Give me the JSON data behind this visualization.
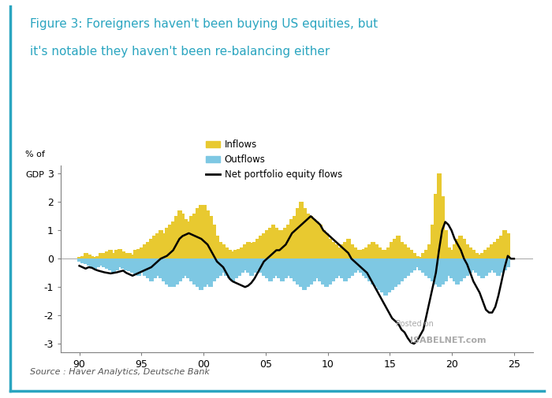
{
  "title_line1": "Figure 3: Foreigners haven't been buying US equities, but",
  "title_line2": "it's notable they haven't been re-balancing either",
  "ylabel_line1": "% of",
  "ylabel_line2": "GDP",
  "source": "Source : Haver Analytics, Deutsche Bank",
  "watermark_line1": "Posted on",
  "watermark_line2": "ISABELNET.com",
  "ylim": [
    -3.3,
    3.3
  ],
  "yticks": [
    -3,
    -2,
    -1,
    0,
    1,
    2,
    3
  ],
  "xticks": [
    90,
    95,
    100,
    105,
    110,
    115,
    120,
    125
  ],
  "xtick_labels": [
    "90",
    "95",
    "00",
    "05",
    "10",
    "15",
    "20",
    "25"
  ],
  "inflow_color": "#E8C930",
  "outflow_color": "#7EC8E3",
  "net_color": "#000000",
  "title_color": "#2AA5C0",
  "border_color": "#2AA5C0",
  "background_color": "#FFFFFF",
  "legend_inflows": "Inflows",
  "legend_outflows": "Outflows",
  "legend_net": "Net portfolio equity flows",
  "bar_width": 0.38
}
